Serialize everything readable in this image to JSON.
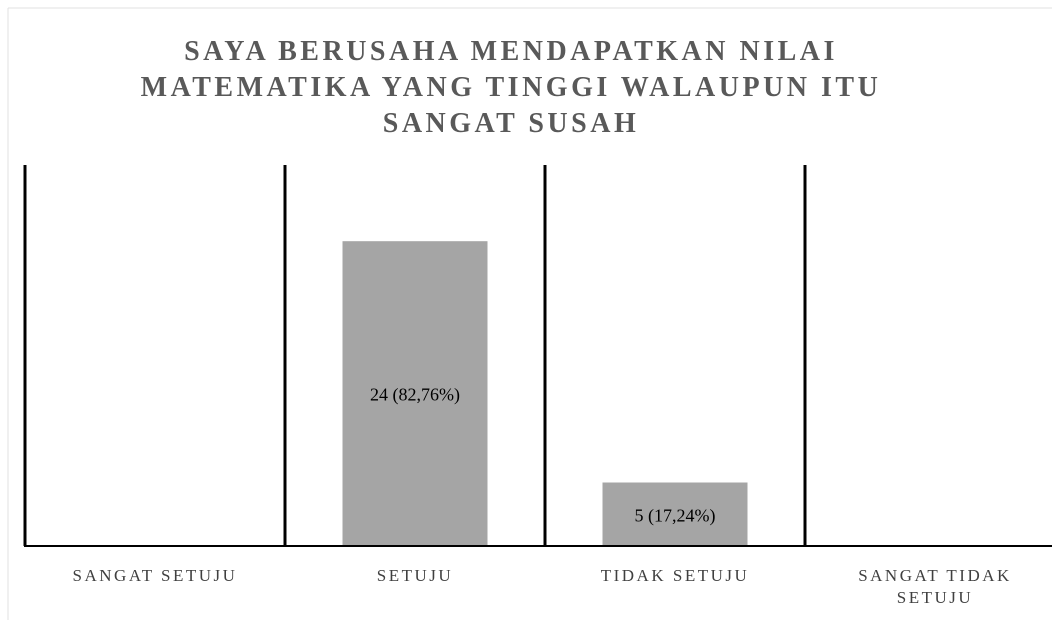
{
  "chart_data": {
    "type": "bar",
    "title": "SAYA BERUSAHA MENDAPATKAN NILAI MATEMATIKA YANG TINGGI WALAUPUN ITU SANGAT SUSAH",
    "categories": [
      "SANGAT SETUJU",
      "SETUJU",
      "TIDAK SETUJU",
      "SANGAT TIDAK SETUJU"
    ],
    "values": [
      0,
      24,
      5,
      0
    ],
    "value_labels": [
      null,
      "24 (82,76%)",
      "5 (17,24%)",
      null
    ],
    "color": "#a5a5a5",
    "ylim": [
      0,
      30
    ]
  }
}
